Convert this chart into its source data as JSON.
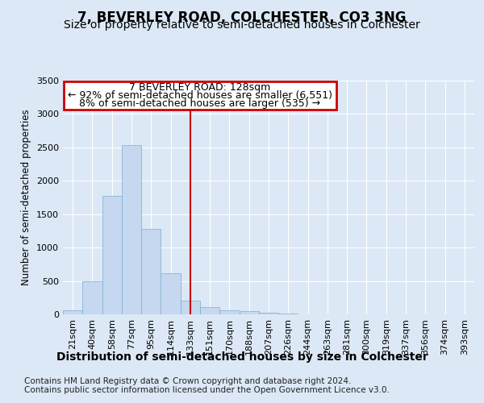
{
  "title": "7, BEVERLEY ROAD, COLCHESTER, CO3 3NG",
  "subtitle": "Size of property relative to semi-detached houses in Colchester",
  "xlabel": "Distribution of semi-detached houses by size in Colchester",
  "ylabel": "Number of semi-detached properties",
  "footnote1": "Contains HM Land Registry data © Crown copyright and database right 2024.",
  "footnote2": "Contains public sector information licensed under the Open Government Licence v3.0.",
  "annotation_line1": "7 BEVERLEY ROAD: 128sqm",
  "annotation_line2": "← 92% of semi-detached houses are smaller (6,551)",
  "annotation_line3": "8% of semi-detached houses are larger (535) →",
  "bar_labels": [
    "21sqm",
    "40sqm",
    "58sqm",
    "77sqm",
    "95sqm",
    "114sqm",
    "133sqm",
    "151sqm",
    "170sqm",
    "188sqm",
    "207sqm",
    "226sqm",
    "244sqm",
    "263sqm",
    "281sqm",
    "300sqm",
    "319sqm",
    "337sqm",
    "356sqm",
    "374sqm",
    "393sqm"
  ],
  "bar_values": [
    60,
    500,
    1775,
    2530,
    1280,
    620,
    200,
    105,
    60,
    45,
    20,
    12,
    5,
    2,
    1,
    1,
    0,
    0,
    0,
    0,
    0
  ],
  "bar_color": "#c5d8ef",
  "bar_edge_color": "#7aadd4",
  "vline_color": "#cc0000",
  "ylim": [
    0,
    3500
  ],
  "yticks": [
    0,
    500,
    1000,
    1500,
    2000,
    2500,
    3000,
    3500
  ],
  "bg_color": "#dce8f5",
  "plot_bg_color": "#dce8f5",
  "grid_color": "#ffffff",
  "annotation_box_color": "#cc0000",
  "title_fontsize": 12,
  "subtitle_fontsize": 10,
  "tick_fontsize": 8,
  "ylabel_fontsize": 8.5,
  "xlabel_fontsize": 10,
  "footnote_fontsize": 7.5,
  "ann_fontsize1": 9,
  "ann_fontsize2": 9
}
